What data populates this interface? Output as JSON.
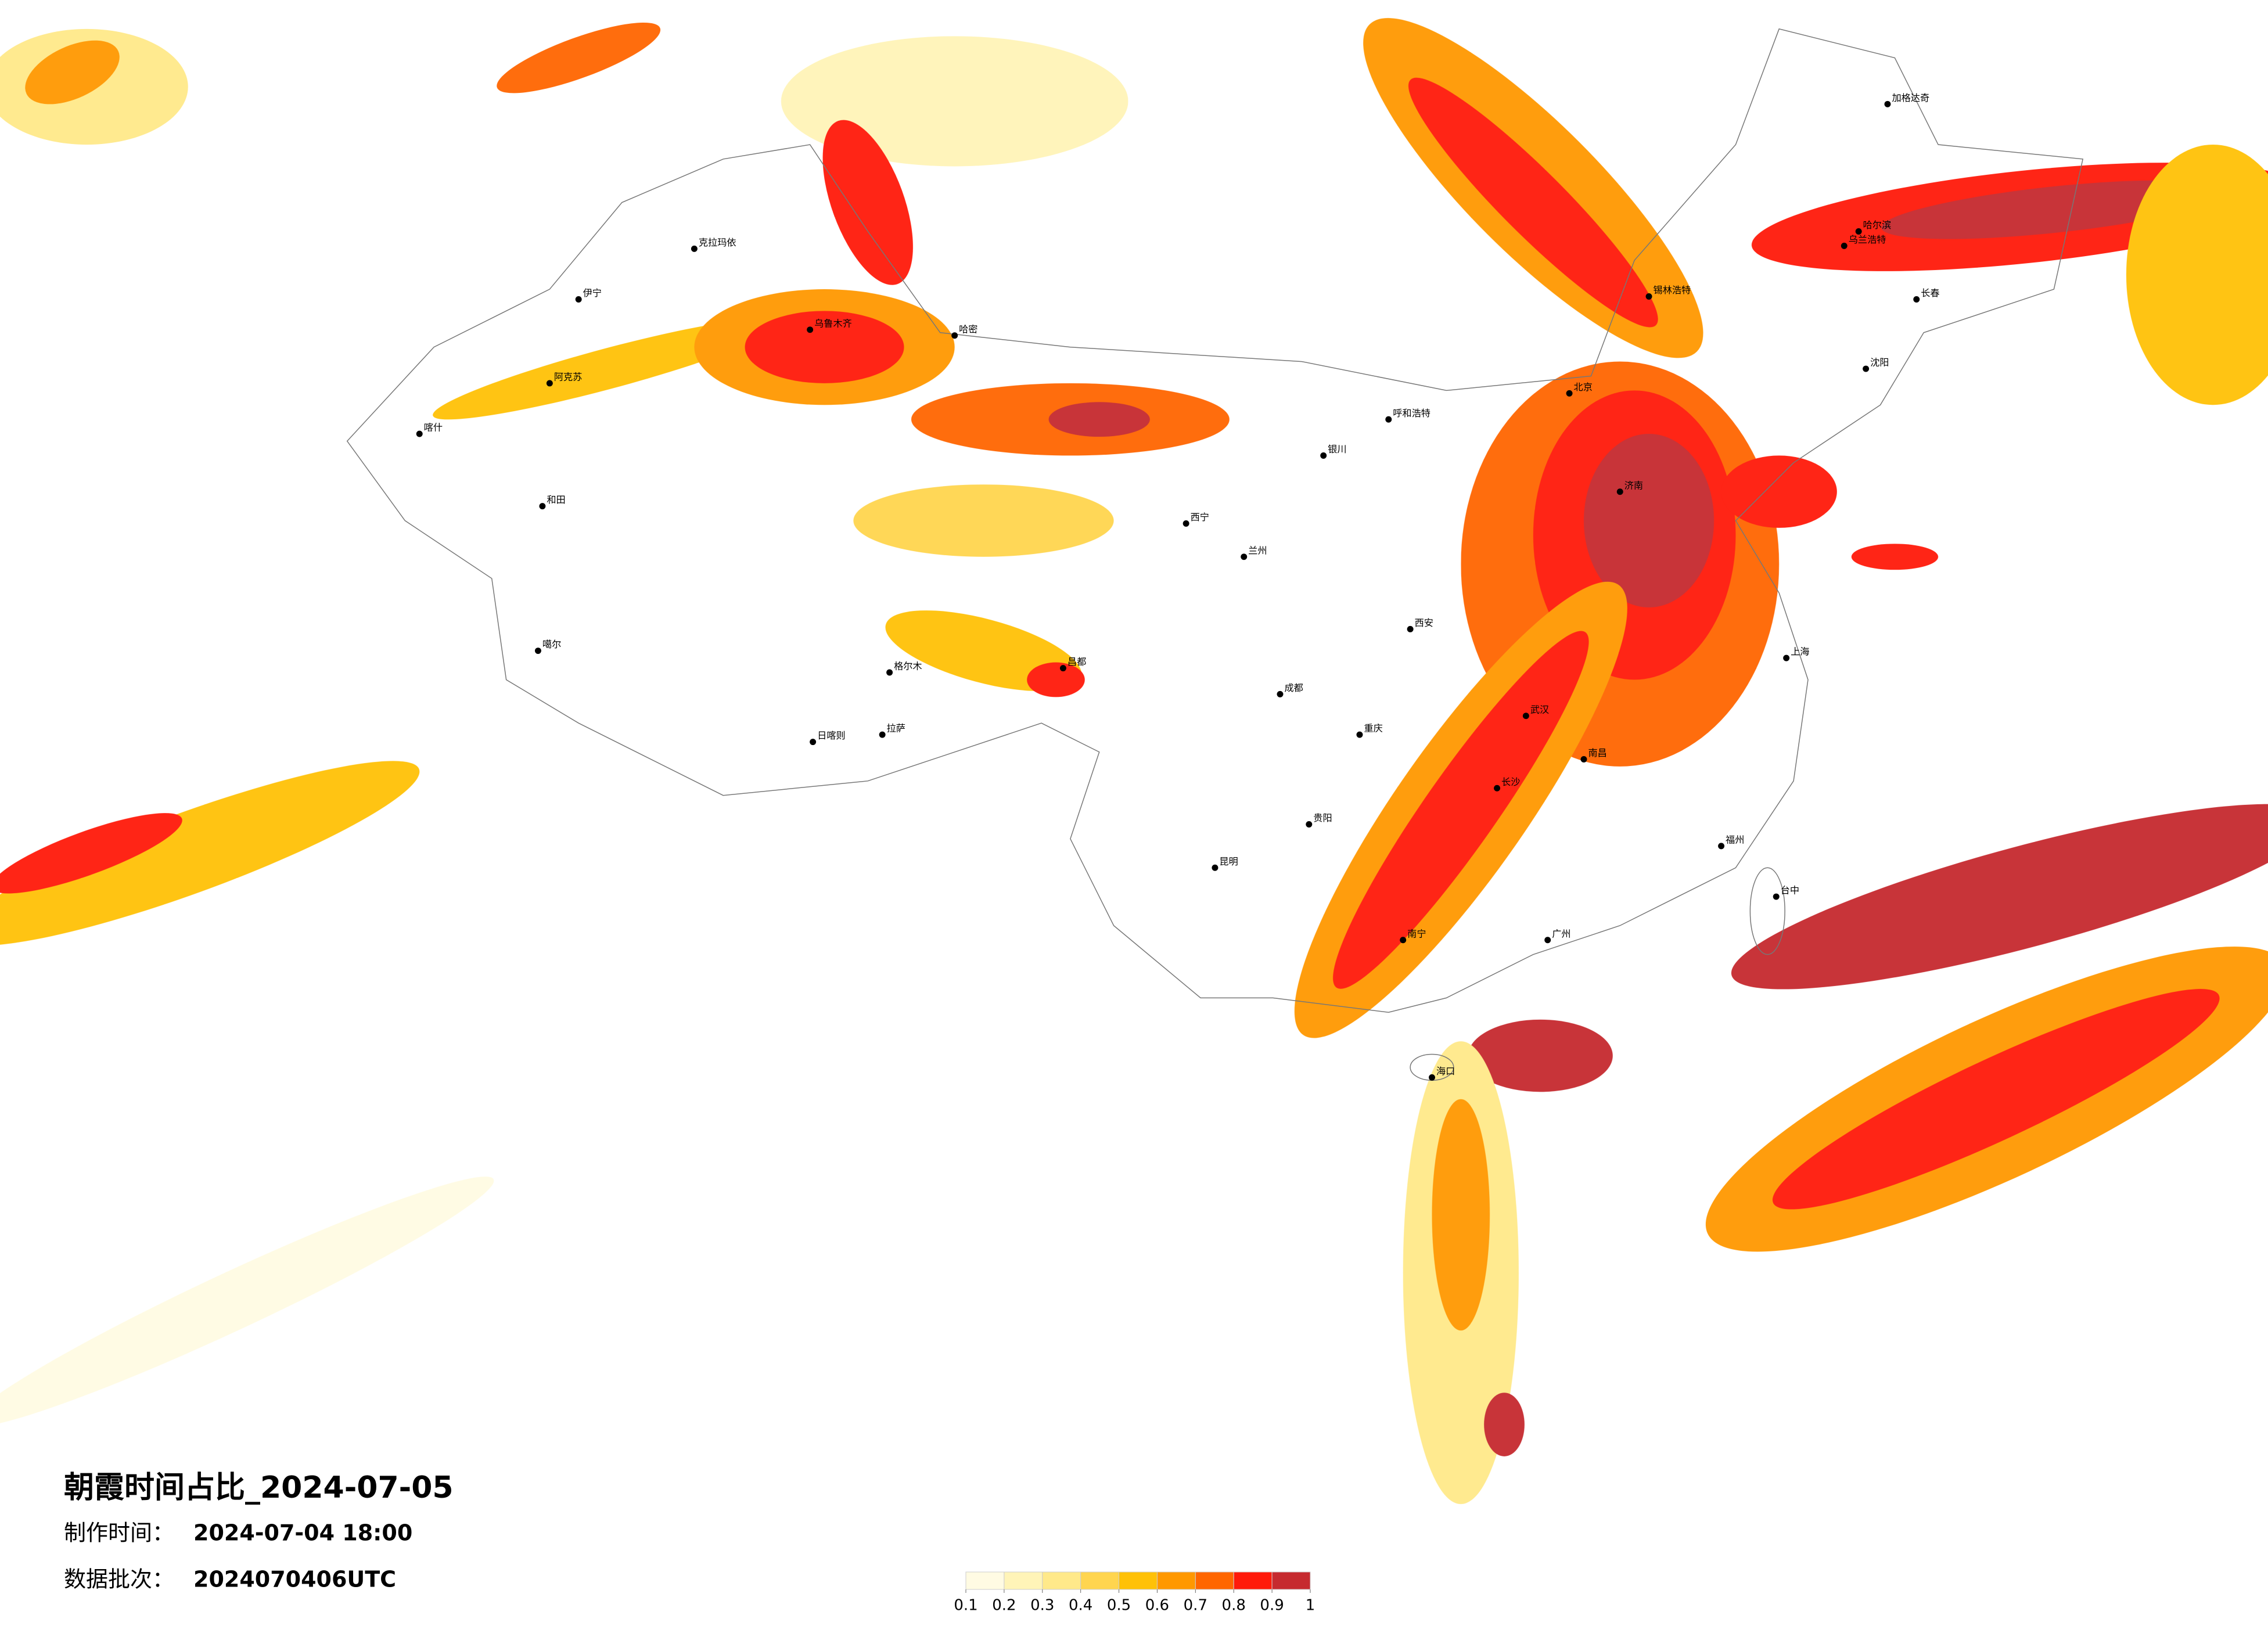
{
  "title": "朝霞时间占比_2024-07-05",
  "production_time": {
    "label": "制作时间：",
    "value": "2024-07-04 18:00"
  },
  "data_batch": {
    "label": "数据批次：",
    "value": "2024070406UTC"
  },
  "colorbar": {
    "colors": [
      "#fffbe3",
      "#fff4b8",
      "#ffe98a",
      "#ffd54f",
      "#ffc107",
      "#ff9800",
      "#ff6600",
      "#ff1a0a",
      "#c62a2f"
    ],
    "ticks": [
      0.1,
      0.2,
      0.3,
      0.4,
      0.5,
      0.6,
      0.7,
      0.8,
      0.9,
      1
    ]
  },
  "cities": [
    "克拉玛依",
    "伊宁",
    "乌鲁木齐",
    "哈密",
    "阿克苏",
    "喀什",
    "和田",
    "噶尔",
    "日喀则",
    "拉萨",
    "昌都",
    "格尔木",
    "西宁",
    "兰州",
    "银川",
    "呼和浩特",
    "锡林浩特",
    "加格达奇",
    "哈尔滨",
    "长春",
    "沈阳",
    "北京",
    "济南",
    "西安",
    "成都",
    "重庆",
    "昆明",
    "贵阳",
    "南宁",
    "广州",
    "长沙",
    "武汉",
    "南昌",
    "上海",
    "福州",
    "台中",
    "海口",
    "乌兰浩特"
  ]
}
